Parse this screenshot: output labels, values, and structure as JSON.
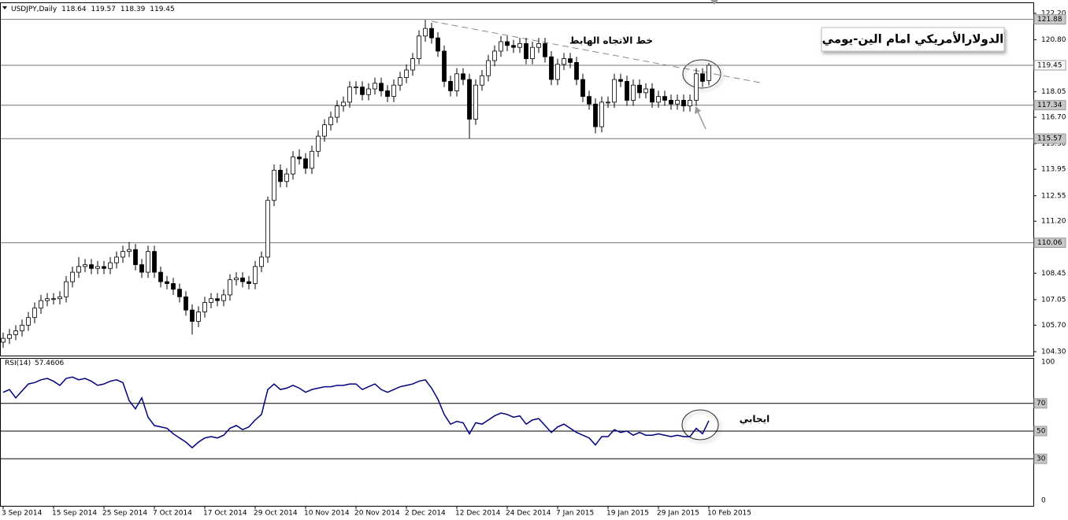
{
  "chart_data": [
    {
      "type": "candlestick",
      "title": "USDJPY,Daily",
      "open": [
        104.8,
        105.0,
        105.2,
        105.4,
        105.7,
        106.1,
        106.6,
        107.0,
        107.1,
        107.1,
        107.2,
        108.0,
        108.5,
        108.8,
        108.9,
        108.7,
        108.8,
        108.7,
        109.0,
        109.3,
        109.6,
        109.7,
        108.9,
        108.5,
        109.6,
        108.5,
        108.0,
        107.9,
        107.6,
        107.2,
        106.5,
        105.9,
        106.4,
        106.9,
        107.1,
        107.0,
        107.3,
        108.1,
        108.2,
        108.0,
        107.9,
        108.8,
        109.3,
        112.3,
        113.9,
        113.3,
        113.7,
        114.6,
        114.5,
        114.0,
        114.9,
        115.7,
        116.3,
        116.7,
        117.3,
        117.5,
        118.3,
        118.3,
        117.9,
        118.2,
        118.5,
        118.1,
        117.8,
        118.4,
        118.8,
        119.2,
        119.8,
        121.0,
        121.4,
        120.9,
        120.2,
        118.6,
        118.1,
        119.0,
        118.7,
        116.6,
        118.4,
        118.9,
        119.7,
        120.2,
        120.7,
        120.5,
        120.4,
        120.6,
        119.8,
        120.4,
        120.6,
        119.9,
        118.7,
        119.5,
        119.8,
        119.6,
        118.7,
        117.8,
        117.4,
        116.2,
        117.5,
        117.5,
        118.7,
        118.6,
        117.6,
        118.4,
        118.0,
        118.2,
        117.5,
        117.8,
        117.6,
        117.4,
        117.6,
        117.3,
        117.6,
        119.0,
        118.64
      ],
      "high": [
        105.3,
        105.5,
        105.7,
        106.0,
        106.4,
        106.9,
        107.3,
        107.4,
        107.4,
        107.5,
        108.3,
        108.8,
        109.3,
        109.2,
        109.2,
        109.1,
        109.1,
        109.3,
        109.6,
        109.9,
        110.1,
        110.0,
        109.2,
        109.9,
        109.9,
        108.8,
        108.3,
        108.2,
        107.9,
        107.5,
        106.8,
        106.7,
        107.2,
        107.4,
        107.4,
        107.6,
        108.4,
        108.5,
        108.5,
        108.3,
        109.1,
        109.6,
        112.5,
        114.2,
        114.2,
        114.0,
        114.9,
        115.0,
        114.8,
        115.2,
        116.0,
        116.6,
        117.0,
        117.6,
        117.8,
        118.6,
        118.6,
        118.6,
        118.5,
        118.8,
        118.8,
        118.4,
        118.7,
        119.1,
        119.5,
        120.1,
        121.3,
        121.85,
        121.7,
        121.2,
        120.5,
        118.9,
        119.3,
        119.3,
        119.0,
        118.7,
        119.2,
        120.0,
        120.5,
        121.0,
        121.0,
        120.8,
        120.9,
        120.9,
        120.7,
        120.9,
        120.9,
        120.2,
        119.8,
        120.1,
        120.1,
        119.9,
        119.0,
        118.1,
        117.7,
        117.8,
        117.8,
        119.0,
        119.0,
        118.9,
        118.7,
        118.7,
        118.5,
        118.5,
        118.1,
        118.1,
        117.9,
        117.9,
        117.9,
        117.9,
        119.3,
        119.3,
        119.57
      ],
      "low": [
        104.5,
        104.7,
        104.9,
        105.1,
        105.4,
        105.8,
        106.3,
        106.7,
        106.8,
        106.8,
        106.9,
        107.7,
        108.2,
        108.5,
        108.4,
        108.4,
        108.4,
        108.4,
        108.7,
        109.0,
        109.3,
        108.6,
        108.2,
        108.2,
        108.2,
        107.7,
        107.6,
        107.3,
        106.9,
        106.2,
        105.2,
        105.6,
        106.1,
        106.6,
        106.7,
        106.7,
        107.0,
        107.8,
        107.7,
        107.6,
        107.6,
        108.5,
        109.0,
        112.0,
        113.0,
        113.0,
        113.4,
        114.2,
        113.7,
        113.7,
        114.6,
        115.4,
        116.0,
        116.4,
        117.0,
        117.2,
        117.9,
        117.6,
        117.6,
        117.9,
        117.8,
        117.5,
        117.5,
        118.1,
        118.5,
        118.9,
        119.5,
        120.7,
        120.6,
        119.9,
        118.3,
        117.8,
        117.8,
        118.4,
        115.57,
        116.3,
        118.1,
        118.6,
        119.4,
        119.9,
        120.2,
        120.1,
        120.1,
        119.5,
        119.5,
        120.1,
        119.6,
        118.4,
        118.4,
        119.2,
        119.3,
        118.4,
        117.5,
        117.1,
        115.85,
        115.9,
        117.2,
        117.2,
        118.3,
        117.3,
        117.3,
        117.7,
        117.7,
        117.2,
        117.2,
        117.3,
        117.1,
        117.1,
        117.0,
        117.0,
        117.3,
        118.3,
        118.39
      ],
      "close": [
        105.0,
        105.2,
        105.4,
        105.7,
        106.1,
        106.6,
        107.0,
        107.1,
        107.1,
        107.2,
        108.0,
        108.5,
        108.8,
        108.9,
        108.7,
        108.8,
        108.7,
        109.0,
        109.3,
        109.6,
        109.7,
        108.9,
        108.5,
        109.6,
        108.5,
        108.0,
        107.9,
        107.6,
        107.2,
        106.5,
        105.9,
        106.4,
        106.9,
        107.1,
        107.0,
        107.3,
        108.1,
        108.2,
        108.0,
        107.9,
        108.8,
        109.3,
        112.3,
        113.9,
        113.3,
        113.7,
        114.6,
        114.5,
        114.0,
        114.9,
        115.7,
        116.3,
        116.7,
        117.3,
        117.5,
        118.3,
        118.3,
        117.9,
        118.2,
        118.5,
        118.1,
        117.8,
        118.4,
        118.8,
        119.2,
        119.8,
        121.0,
        121.4,
        120.9,
        120.2,
        118.6,
        118.1,
        119.0,
        118.7,
        116.6,
        118.4,
        118.9,
        119.7,
        120.2,
        120.7,
        120.5,
        120.4,
        120.6,
        119.8,
        120.4,
        120.6,
        119.9,
        118.7,
        119.5,
        119.8,
        119.6,
        118.7,
        117.8,
        117.4,
        116.2,
        117.5,
        117.5,
        118.7,
        118.6,
        117.6,
        118.4,
        118.0,
        118.2,
        117.5,
        117.8,
        117.6,
        117.4,
        117.6,
        117.3,
        117.6,
        119.0,
        118.6,
        119.45
      ],
      "ylim": [
        104.09,
        122.78
      ],
      "yticks": [
        {
          "value": 122.2,
          "label": "122.20"
        },
        {
          "value": 120.8,
          "label": "120.80"
        },
        118.05,
        {
          "value": 116.7,
          "label": "116.70"
        },
        {
          "value": 115.3,
          "label": "115.30"
        },
        113.95,
        112.55,
        {
          "value": 111.2,
          "label": "111.20"
        },
        108.45,
        107.05,
        {
          "value": 105.7,
          "label": "105.70"
        },
        {
          "value": 104.3,
          "label": "104.30"
        }
      ],
      "levels": [
        121.88,
        117.34,
        115.57,
        110.06
      ],
      "annotations": [
        "خط الاتجاه الهابط",
        "الدولارالأمريكي امام الين-يومي"
      ]
    },
    {
      "type": "line",
      "title": "RSI(14)",
      "color": "#000080",
      "categories": [
        "3 Sep 2014",
        null,
        null,
        null,
        null,
        null,
        null,
        null,
        "15 Sep 2014",
        null,
        null,
        null,
        null,
        null,
        null,
        null,
        "25 Sep 2014",
        null,
        null,
        null,
        null,
        null,
        null,
        null,
        "7 Oct 2014",
        null,
        null,
        null,
        null,
        null,
        null,
        null,
        "17 Oct 2014",
        null,
        null,
        null,
        null,
        null,
        null,
        null,
        "29 Oct 2014",
        null,
        null,
        null,
        null,
        null,
        null,
        null,
        "10 Nov 2014",
        null,
        null,
        null,
        null,
        null,
        null,
        null,
        "20 Nov 2014",
        null,
        null,
        null,
        null,
        null,
        null,
        null,
        "2 Dec 2014",
        null,
        null,
        null,
        null,
        null,
        null,
        null,
        "12 Dec 2014",
        null,
        null,
        null,
        null,
        null,
        null,
        null,
        "24 Dec 2014",
        null,
        null,
        null,
        null,
        null,
        null,
        null,
        "7 Jan 2015",
        null,
        null,
        null,
        null,
        null,
        null,
        null,
        "19 Jan 2015",
        null,
        null,
        null,
        null,
        null,
        null,
        null,
        "29 Jan 2015",
        null,
        null,
        null,
        null,
        null,
        null,
        null,
        "10 Feb 2015"
      ],
      "values": [
        78,
        80,
        74,
        79,
        84,
        85,
        87,
        88,
        86,
        83,
        88,
        89,
        87,
        88,
        86,
        83,
        84,
        86,
        87,
        85,
        72,
        66,
        74,
        60,
        54,
        53,
        52,
        48,
        45,
        42,
        38,
        42,
        45,
        46,
        45,
        47,
        52,
        54,
        51,
        53,
        58,
        62,
        80,
        84,
        80,
        81,
        83,
        81,
        78,
        80,
        81,
        82,
        82,
        83,
        83,
        84,
        84,
        80,
        82,
        84,
        80,
        78,
        80,
        82,
        83,
        84,
        86,
        87,
        81,
        73,
        62,
        55,
        57,
        56,
        48,
        56,
        55,
        58,
        61,
        63,
        62,
        60,
        61,
        55,
        58,
        59,
        54,
        49,
        53,
        55,
        52,
        49,
        47,
        45,
        40,
        46,
        46,
        51,
        49,
        50,
        47,
        49,
        47,
        47,
        48,
        47,
        46,
        47,
        46,
        46,
        52,
        48,
        57.4606
      ],
      "ylim": [
        -4,
        102.8
      ],
      "yticks": [
        0,
        100
      ],
      "levels": [
        30,
        50,
        70
      ],
      "annotations": [
        "ايجابي"
      ]
    }
  ]
}
